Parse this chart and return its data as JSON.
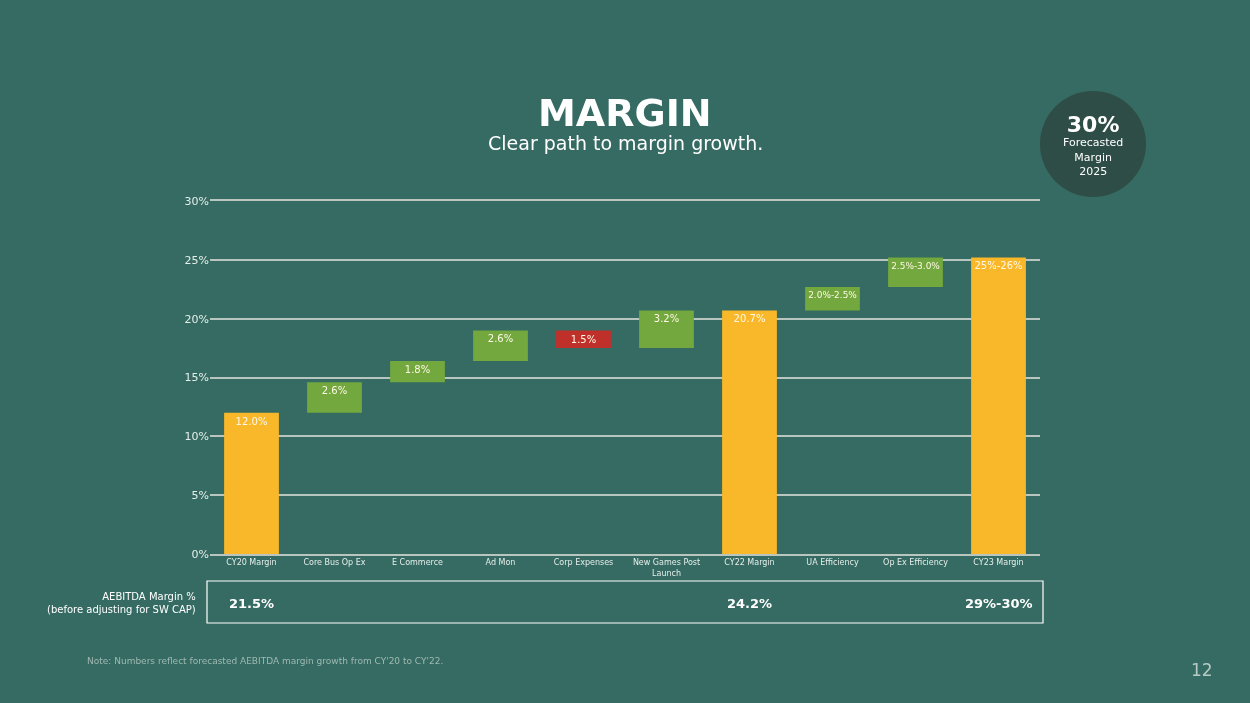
{
  "chart_data": {
    "type": "bar",
    "title": "MARGIN",
    "subtitle": "Clear path to margin growth.",
    "categories": [
      "CY20 Margin",
      "Core Bus Op Ex",
      "E Commerce",
      "Ad Mon",
      "Corp Expenses",
      "New Games Post Launch",
      "CY22 Margin",
      "UA Efficiency",
      "Op Ex Efficiency",
      "CY23 Margin"
    ],
    "values": [
      12.0,
      2.6,
      1.8,
      2.6,
      -1.5,
      3.2,
      20.7,
      2.0,
      2.5,
      25.2
    ],
    "base": [
      0,
      12.0,
      14.6,
      16.4,
      19.0,
      17.5,
      0,
      20.7,
      22.7,
      0
    ],
    "colors": [
      "#f9b82a",
      "#72a83d",
      "#72a83d",
      "#72a83d",
      "#c0302b",
      "#72a83d",
      "#f9b82a",
      "#72a83d",
      "#72a83d",
      "#f9b82a"
    ],
    "value_labels": [
      "12.0%",
      "2.6%",
      "1.8%",
      "2.6%",
      "1.5%",
      "3.2%",
      "20.7%",
      "2.0%-2.5%",
      "2.5%-3.0%",
      "25%-26%"
    ],
    "ylim": [
      0,
      30
    ],
    "yticks": [
      {
        "value": 0,
        "label": "0%"
      },
      {
        "value": 5,
        "label": "5%"
      },
      {
        "value": 10,
        "label": "10%"
      },
      {
        "value": 15,
        "label": "15%"
      },
      {
        "value": 20,
        "label": "20%"
      },
      {
        "value": 25,
        "label": "25%"
      },
      {
        "value": 30,
        "label": "30%"
      }
    ],
    "grid": "y",
    "annotations": [
      "AEBITDA Margin %\n(before adjusting for SW CAP)",
      "21.5%",
      "24.2%",
      "29%-30%",
      "30%\nForecasted\nMargin\n2025",
      "Note: Numbers reflect forecasted AEBITDA margin growth from CY'20 to CY'22.",
      "12"
    ]
  }
}
